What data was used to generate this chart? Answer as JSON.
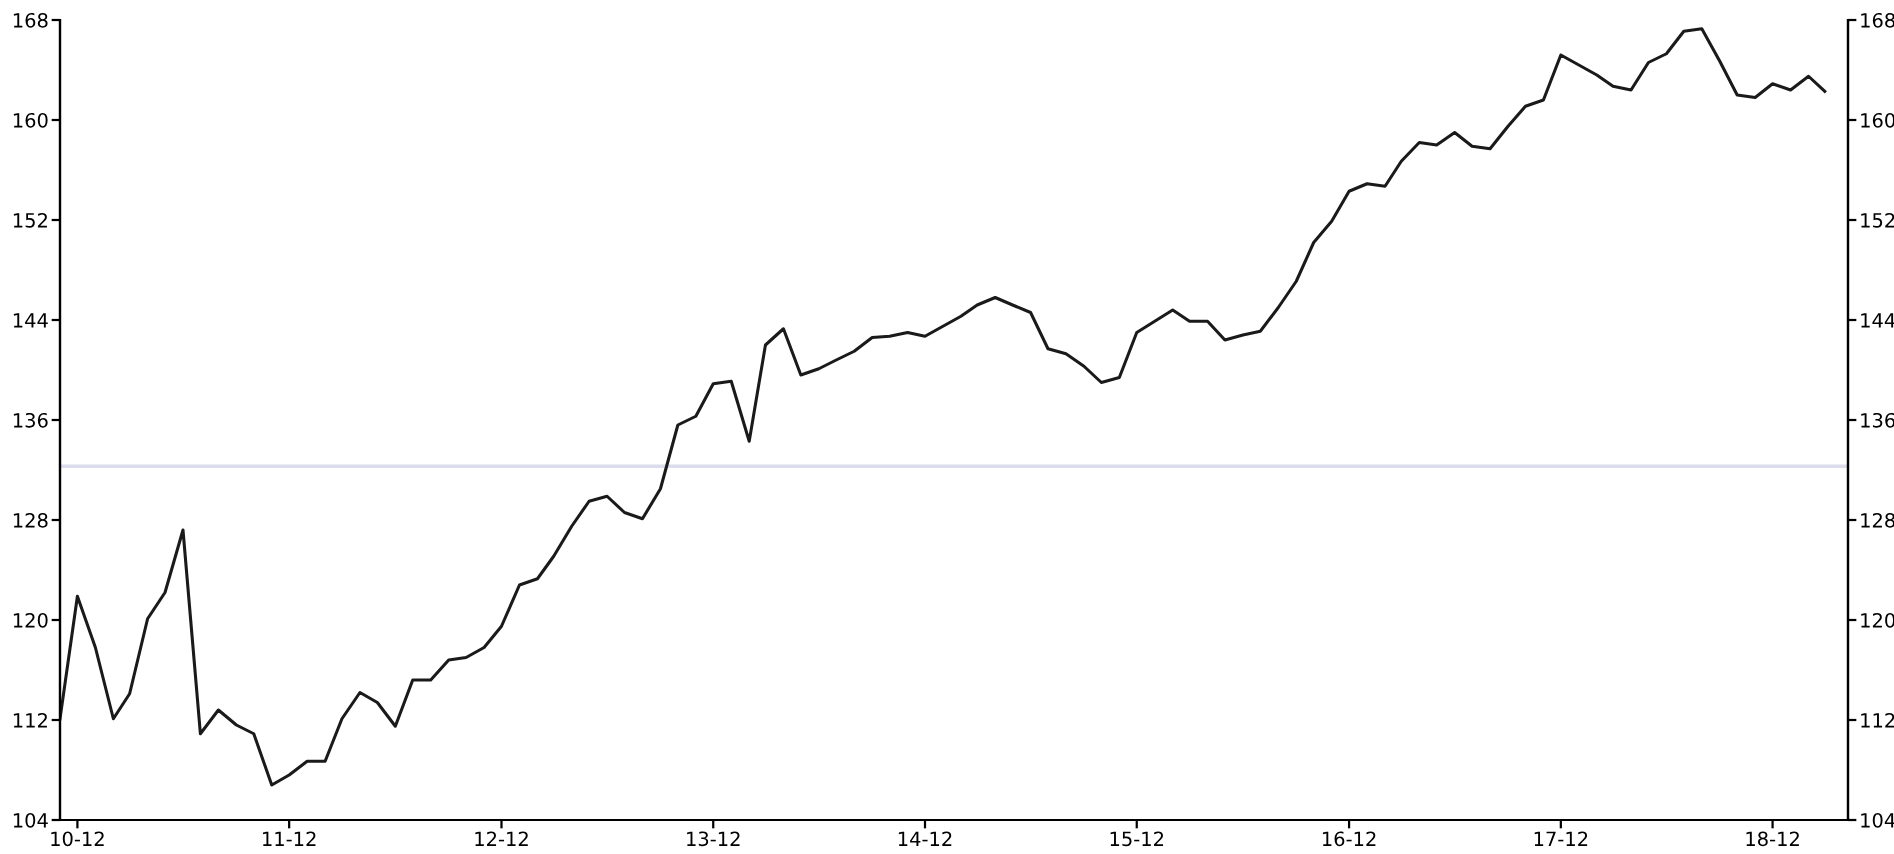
{
  "chart_data": {
    "type": "line",
    "x": [
      "2010-11",
      "2010-12",
      "2011-01",
      "2011-02",
      "2011-03",
      "2011-04",
      "2011-05",
      "2011-06",
      "2011-07",
      "2011-08",
      "2011-09",
      "2011-10",
      "2011-11",
      "2011-12",
      "2012-01",
      "2012-02",
      "2012-03",
      "2012-04",
      "2012-05",
      "2012-06",
      "2012-07",
      "2012-08",
      "2012-09",
      "2012-10",
      "2012-11",
      "2012-12",
      "2013-01",
      "2013-02",
      "2013-03",
      "2013-04",
      "2013-05",
      "2013-06",
      "2013-07",
      "2013-08",
      "2013-09",
      "2013-10",
      "2013-11",
      "2013-12",
      "2014-01",
      "2014-02",
      "2014-03",
      "2014-04",
      "2014-05",
      "2014-06",
      "2014-07",
      "2014-08",
      "2014-09",
      "2014-10",
      "2014-11",
      "2014-12",
      "2015-01",
      "2015-02",
      "2015-03",
      "2015-04",
      "2015-05",
      "2015-06",
      "2015-07",
      "2015-08",
      "2015-09",
      "2015-10",
      "2015-11",
      "2015-12",
      "2016-01",
      "2016-02",
      "2016-03",
      "2016-04",
      "2016-05",
      "2016-06",
      "2016-07",
      "2016-08",
      "2016-09",
      "2016-10",
      "2016-11",
      "2016-12",
      "2017-01",
      "2017-02",
      "2017-03",
      "2017-04",
      "2017-05",
      "2017-06",
      "2017-07",
      "2017-08",
      "2017-09",
      "2017-10",
      "2017-11",
      "2017-12",
      "2018-01",
      "2018-02",
      "2018-03",
      "2018-04",
      "2018-05",
      "2018-06",
      "2018-07",
      "2018-08",
      "2018-09",
      "2018-10",
      "2018-11",
      "2018-12",
      "2019-01",
      "2019-02",
      "2019-03"
    ],
    "series": [
      {
        "color": "#1a1a1a",
        "values": [
          112.1,
          121.9,
          117.8,
          112.1,
          114.1,
          120.1,
          122.2,
          127.2,
          110.9,
          112.8,
          111.6,
          110.9,
          106.8,
          107.6,
          108.7,
          108.7,
          112.1,
          114.2,
          113.4,
          111.5,
          115.2,
          115.2,
          116.8,
          117.0,
          117.8,
          119.5,
          122.8,
          123.3,
          125.1,
          127.5,
          129.5,
          129.9,
          128.6,
          128.1,
          130.5,
          135.6,
          136.3,
          138.9,
          139.1,
          134.3,
          142.0,
          143.3,
          139.6,
          140.1,
          140.8,
          141.5,
          142.6,
          142.7,
          143.0,
          142.7,
          143.5,
          144.3,
          145.2,
          145.8,
          145.2,
          144.6,
          141.7,
          141.3,
          140.3,
          139.0,
          139.4,
          143.0,
          143.9,
          144.8,
          143.9,
          143.9,
          142.4,
          142.8,
          143.1,
          145.0,
          147.1,
          150.2,
          151.9,
          154.3,
          154.9,
          154.7,
          156.7,
          158.2,
          158.0,
          159.0,
          157.9,
          157.7,
          159.5,
          161.1,
          161.6,
          165.2,
          164.4,
          163.6,
          162.7,
          162.4,
          164.6,
          165.3,
          167.1,
          167.3,
          164.7,
          162.0,
          161.8,
          162.9,
          162.4,
          163.5,
          162.3
        ]
      }
    ],
    "xlim": [
      "2010-11-01",
      "2019-04-10"
    ],
    "xticks": [
      {
        "value": "2010-12",
        "label": "10-12"
      },
      {
        "value": "2011-12",
        "label": "11-12"
      },
      {
        "value": "2012-12",
        "label": "12-12"
      },
      {
        "value": "2013-12",
        "label": "13-12"
      },
      {
        "value": "2014-12",
        "label": "14-12"
      },
      {
        "value": "2015-12",
        "label": "15-12"
      },
      {
        "value": "2016-12",
        "label": "16-12"
      },
      {
        "value": "2017-12",
        "label": "17-12"
      },
      {
        "value": "2018-12",
        "label": "18-12"
      }
    ],
    "ylim": [
      104,
      168
    ],
    "yticks": [
      104,
      112,
      120,
      128,
      136,
      144,
      152,
      160,
      168
    ],
    "y2lim": [
      104,
      168
    ],
    "y2ticks": [
      104,
      112,
      120,
      128,
      136,
      144,
      152,
      160,
      168
    ],
    "ref_lines": [
      {
        "axis": "y",
        "value": 132.3,
        "color": "#dcdcee"
      }
    ],
    "grid": false,
    "legend": false,
    "marker": "none",
    "line_style": "solid"
  }
}
